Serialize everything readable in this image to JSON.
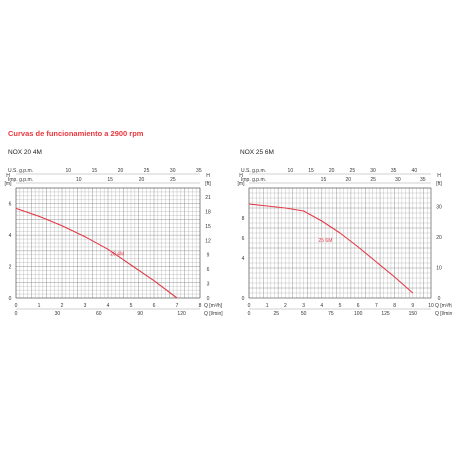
{
  "title": "Curvas de funcionamiento a 2900 rpm",
  "colors": {
    "title": "#e8373d",
    "curve": "#e23b4a",
    "grid": "#8a8a8a",
    "text": "#333333"
  },
  "chart_data": [
    {
      "type": "line",
      "name": "NOX 20 4M",
      "curve_label": "20 4M",
      "top_labels": {
        "usgpm": "U.S. g.p.m.",
        "imp": "Imp. g.p.m."
      },
      "unit_labels": {
        "h_left_top": "H",
        "h_left_unit": "[m]",
        "h_right_top": "H",
        "h_right_unit": "[ft]",
        "q_lmin": "Q [l/min]",
        "q_m3h": "Q [m³/h]"
      },
      "xlim": [
        0,
        8
      ],
      "ylim": [
        0,
        7
      ],
      "usgpm_ticks": [
        "10",
        "15",
        "20",
        "25",
        "30",
        "35"
      ],
      "imp_ticks": [
        "10",
        "15",
        "20",
        "25",
        "30"
      ],
      "m3h_ticks": [
        "0",
        "1",
        "2",
        "3",
        "4",
        "5",
        "6",
        "7",
        "8"
      ],
      "lmin_ticks": [
        "0",
        "30",
        "60",
        "90",
        "120"
      ],
      "h_ticks": [
        "0",
        "2",
        "4",
        "6"
      ],
      "ft_ticks": [
        "0",
        "3",
        "6",
        "9",
        "12",
        "15",
        "18",
        "21",
        "24"
      ],
      "x": [
        0,
        1,
        2,
        3,
        4,
        4.5,
        5,
        6,
        7
      ],
      "y": [
        5.7,
        5.2,
        4.6,
        3.9,
        3.1,
        2.6,
        2.1,
        1.1,
        0
      ],
      "xlabel": "Q [m³/h]",
      "ylabel": "H [m]"
    },
    {
      "type": "line",
      "name": "NOX 25 6M",
      "curve_label": "25 6M",
      "top_labels": {
        "usgpm": "U.S. g.p.m.",
        "imp": "Imp. g.p.m."
      },
      "unit_labels": {
        "h_left_top": "H",
        "h_left_unit": "[m]",
        "h_right_top": "H",
        "h_right_unit": "[ft]",
        "q_lmin": "Q [l/min]",
        "q_m3h": "Q [m³/h]"
      },
      "xlim": [
        0,
        10
      ],
      "ylim": [
        0,
        11
      ],
      "usgpm_ticks": [
        "10",
        "15",
        "20",
        "25",
        "30",
        "35",
        "40",
        "45",
        "50",
        "55"
      ],
      "imp_ticks": [
        "15",
        "20",
        "25",
        "30",
        "35"
      ],
      "m3h_ticks": [
        "0",
        "1",
        "2",
        "3",
        "4",
        "5",
        "6",
        "7",
        "8",
        "9",
        "10"
      ],
      "lmin_ticks": [
        "0",
        "25",
        "50",
        "75",
        "100",
        "125",
        "150",
        "175",
        "200",
        "225"
      ],
      "h_ticks": [
        "0",
        "4",
        "6",
        "8"
      ],
      "ft_ticks": [
        "0",
        "10",
        "20",
        "30"
      ],
      "x": [
        0,
        1,
        2,
        3,
        4,
        5,
        6,
        7,
        8,
        9
      ],
      "y": [
        9.4,
        9.2,
        9.0,
        8.7,
        7.7,
        6.5,
        5.1,
        3.6,
        2.1,
        0.5
      ],
      "xlabel": "Q [m³/h]",
      "ylabel": "H [m]"
    }
  ]
}
